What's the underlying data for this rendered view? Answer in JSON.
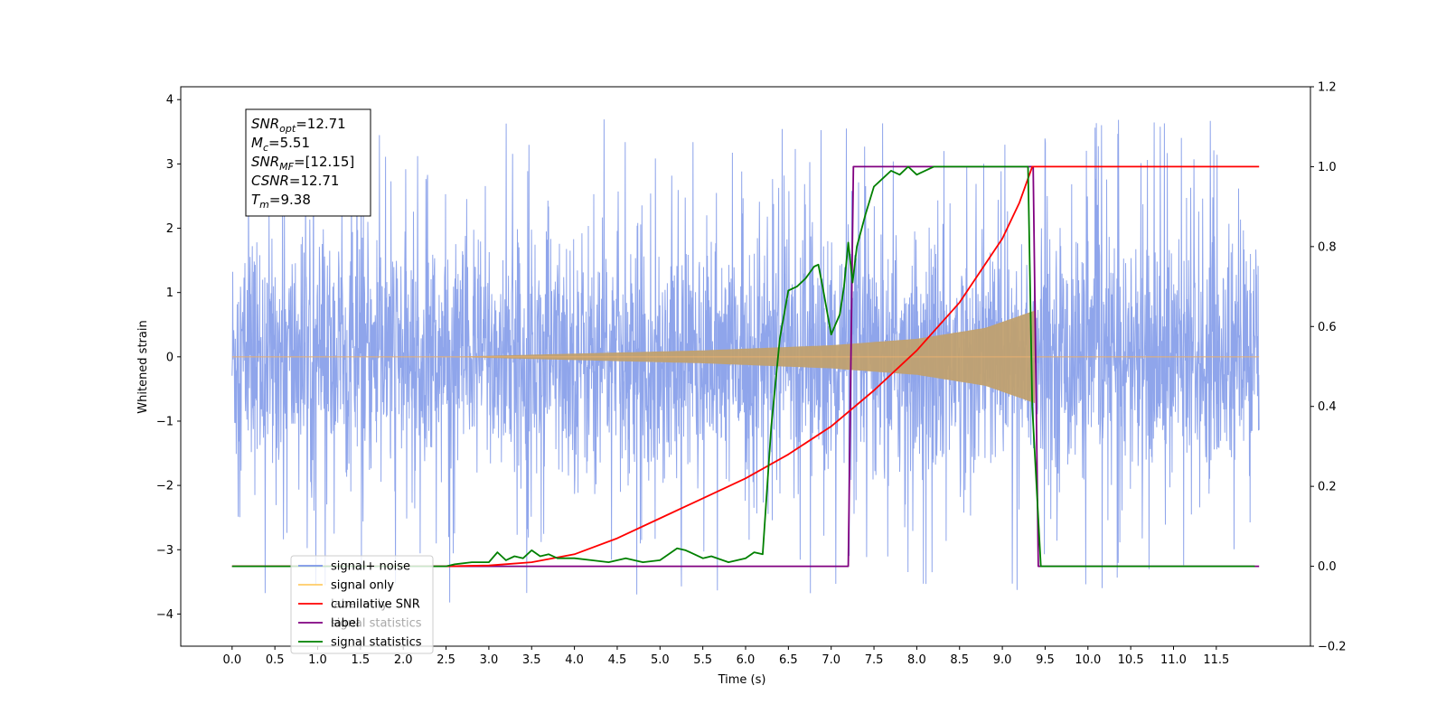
{
  "chart_data": {
    "type": "line",
    "xlabel": "Time (s)",
    "ylabel": "Whitened strain",
    "xlim": [
      -0.6,
      12.6
    ],
    "ylim_left": [
      -4.5,
      4.2
    ],
    "ylim_right": [
      -0.2,
      1.2
    ],
    "x_ticks": [
      "0.0",
      "0.5",
      "1.0",
      "1.5",
      "2.0",
      "2.5",
      "3.0",
      "3.5",
      "4.0",
      "4.5",
      "5.0",
      "5.5",
      "6.0",
      "6.5",
      "7.0",
      "7.5",
      "8.0",
      "8.5",
      "9.0",
      "9.5",
      "10.0",
      "10.5",
      "11.0",
      "11.5"
    ],
    "y_ticks_left": [
      "4",
      "3",
      "2",
      "1",
      "0",
      "−1",
      "−2",
      "−3",
      "−4"
    ],
    "y_ticks_right": [
      "1.2",
      "1.0",
      "0.8",
      "0.6",
      "0.4",
      "0.2",
      "0.0",
      "−0.2"
    ],
    "grid": false,
    "legend_position": "lower-left",
    "annotation": {
      "lines": [
        {
          "base": "SNR",
          "sub": "opt",
          "value": "=12.71"
        },
        {
          "base": "M",
          "sub": "c",
          "value": "=5.51"
        },
        {
          "base": "SNR",
          "sub": "MF",
          "value": "=[12.15]"
        },
        {
          "base": "CSNR",
          "sub": "",
          "value": "=12.71"
        },
        {
          "base": "T",
          "sub": "m",
          "value": "=9.38"
        }
      ]
    },
    "legend": [
      {
        "label": "signal+ noise",
        "color": "#7b95e8"
      },
      {
        "label": "signal only",
        "color": "#ffcc66"
      },
      {
        "label": "cumilative SNR",
        "color": "#ff0000"
      },
      {
        "label": "label",
        "color": "#800080"
      },
      {
        "label": "signal statistics",
        "color": "#008000"
      }
    ],
    "ghost_legend_texts": [
      "signal only",
      "label only",
      "signal statistics"
    ],
    "series": [
      {
        "name": "signal+ noise",
        "axis": "left",
        "color": "#7b95e8",
        "kind": "noise",
        "x_range": [
          0.0,
          12.0
        ],
        "envelope_typical": 2.0,
        "spike_max": 3.85,
        "spike_min": -4.1
      },
      {
        "name": "signal only",
        "axis": "left",
        "color": "#c0a070",
        "kind": "chirp",
        "start": 2.5,
        "end": 9.38,
        "amplitude_at": [
          [
            2.5,
            0.0
          ],
          [
            4.0,
            0.05
          ],
          [
            5.5,
            0.1
          ],
          [
            7.0,
            0.18
          ],
          [
            8.0,
            0.28
          ],
          [
            8.8,
            0.45
          ],
          [
            9.38,
            0.72
          ]
        ]
      },
      {
        "name": "cumilative SNR",
        "axis": "right",
        "color": "#ff0000",
        "x": [
          0.0,
          2.5,
          3.0,
          3.5,
          4.0,
          4.5,
          5.0,
          5.5,
          6.0,
          6.5,
          7.0,
          7.5,
          8.0,
          8.5,
          9.0,
          9.2,
          9.35,
          9.4,
          12.0
        ],
        "y": [
          0.0,
          0.0,
          0.002,
          0.01,
          0.03,
          0.07,
          0.12,
          0.17,
          0.22,
          0.28,
          0.35,
          0.44,
          0.54,
          0.66,
          0.82,
          0.91,
          1.0,
          1.0,
          1.0
        ]
      },
      {
        "name": "label",
        "axis": "right",
        "color": "#800080",
        "x": [
          0.0,
          7.2,
          7.26,
          9.36,
          9.42,
          12.0
        ],
        "y": [
          0.0,
          0.0,
          1.0,
          1.0,
          0.0,
          0.0
        ]
      },
      {
        "name": "signal statistics",
        "axis": "right",
        "color": "#008000",
        "x": [
          0.0,
          2.5,
          2.6,
          2.8,
          3.0,
          3.1,
          3.2,
          3.3,
          3.4,
          3.5,
          3.6,
          3.7,
          3.8,
          4.0,
          4.2,
          4.4,
          4.6,
          4.8,
          5.0,
          5.2,
          5.3,
          5.5,
          5.6,
          5.8,
          6.0,
          6.1,
          6.2,
          6.3,
          6.4,
          6.5,
          6.6,
          6.7,
          6.8,
          6.85,
          6.9,
          7.0,
          7.1,
          7.15,
          7.2,
          7.25,
          7.3,
          7.4,
          7.5,
          7.6,
          7.7,
          7.8,
          7.9,
          8.0,
          8.2,
          8.5,
          9.0,
          9.3,
          9.35,
          9.45,
          11.95
        ],
        "y": [
          0.0,
          0.0,
          0.005,
          0.01,
          0.01,
          0.035,
          0.015,
          0.025,
          0.02,
          0.04,
          0.025,
          0.03,
          0.02,
          0.02,
          0.015,
          0.01,
          0.02,
          0.01,
          0.015,
          0.045,
          0.04,
          0.02,
          0.025,
          0.01,
          0.02,
          0.035,
          0.03,
          0.35,
          0.57,
          0.69,
          0.7,
          0.72,
          0.75,
          0.755,
          0.7,
          0.58,
          0.63,
          0.7,
          0.81,
          0.71,
          0.8,
          0.88,
          0.95,
          0.97,
          0.99,
          0.98,
          1.0,
          0.98,
          1.0,
          1.0,
          1.0,
          1.0,
          0.4,
          0.0,
          0.0
        ]
      }
    ]
  }
}
